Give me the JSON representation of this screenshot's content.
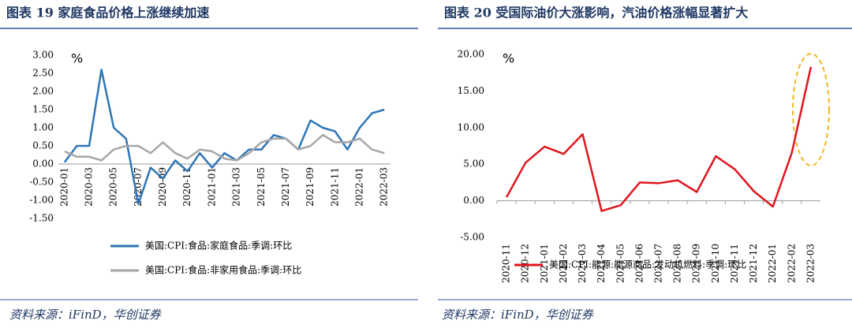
{
  "chart_data": [
    {
      "type": "line",
      "title": "图表 19 家庭食品价格上涨继续加速",
      "y_unit": "%",
      "categories": [
        "2020-01",
        null,
        "2020-03",
        null,
        "2020-05",
        null,
        "2020-07",
        null,
        "2020-09",
        null,
        "2020-11",
        null,
        "2021-01",
        null,
        "2021-03",
        null,
        "2021-05",
        null,
        "2021-07",
        null,
        "2021-09",
        null,
        "2021-11",
        null,
        "2022-01",
        null,
        "2022-03"
      ],
      "series": [
        {
          "name": "美国:CPI:食品:家庭食品:季调:环比",
          "color": "#2e75b6",
          "values": [
            0.05,
            0.5,
            0.5,
            2.6,
            1.0,
            0.7,
            -1.1,
            -0.1,
            -0.4,
            0.1,
            -0.2,
            0.3,
            -0.1,
            0.3,
            0.1,
            0.4,
            0.4,
            0.8,
            0.7,
            0.4,
            1.2,
            1.0,
            0.9,
            0.4,
            1.0,
            1.4,
            1.5
          ]
        },
        {
          "name": "美国:CPI:食品:非家用食品:季调:环比",
          "color": "#a6a6a6",
          "values": [
            0.35,
            0.2,
            0.2,
            0.1,
            0.4,
            0.5,
            0.5,
            0.3,
            0.6,
            0.3,
            0.15,
            0.4,
            0.35,
            0.15,
            0.1,
            0.3,
            0.6,
            0.7,
            0.7,
            0.4,
            0.5,
            0.8,
            0.6,
            0.6,
            0.7,
            0.4,
            0.3
          ]
        }
      ],
      "ylim": [
        -1.5,
        3.0
      ],
      "yticks": [
        {
          "value": -1.5,
          "label": "-1.50"
        },
        {
          "value": -1.0,
          "label": "-1.00"
        },
        {
          "value": -0.5,
          "label": "-0.50"
        },
        {
          "value": 0,
          "label": "0.00"
        },
        {
          "value": 0.5,
          "label": "0.50"
        },
        {
          "value": 1.0,
          "label": "1.00"
        },
        {
          "value": 1.5,
          "label": "1.50"
        },
        {
          "value": 2.0,
          "label": "2.00"
        },
        {
          "value": 2.5,
          "label": "2.50"
        },
        {
          "value": 3.0,
          "label": "3.00"
        }
      ],
      "source": "资料来源：iFinD，华创证券"
    },
    {
      "type": "line",
      "title": "图表 20 受国际油价大涨影响，汽油价格涨幅显著扩大",
      "y_unit": "%",
      "categories": [
        "2020-11",
        "2020-12",
        "2021-01",
        "2021-02",
        "2021-03",
        "2021-04",
        "2021-05",
        "2021-06",
        "2021-07",
        "2021-08",
        "2021-09",
        "2021-10",
        "2021-11",
        "2021-12",
        "2022-01",
        "2022-02",
        "2022-03"
      ],
      "series": [
        {
          "name": "美国:CPI:能源:能源商品:发动机燃料:季调:环比",
          "color": "#e0161e",
          "values": [
            0.5,
            5.2,
            7.4,
            6.4,
            9.1,
            -1.4,
            -0.6,
            2.5,
            2.4,
            2.8,
            1.2,
            6.1,
            4.3,
            1.3,
            -0.8,
            6.6,
            18.3
          ]
        }
      ],
      "ylim": [
        -5,
        20
      ],
      "yticks": [
        {
          "value": -5,
          "label": "-5.00"
        },
        {
          "value": 0,
          "label": "0.00"
        },
        {
          "value": 5,
          "label": "5.00"
        },
        {
          "value": 10,
          "label": "10.00"
        },
        {
          "value": 15,
          "label": "15.00"
        },
        {
          "value": 20,
          "label": "20.00"
        }
      ],
      "source": "资料来源：iFinD，华创证券"
    }
  ]
}
